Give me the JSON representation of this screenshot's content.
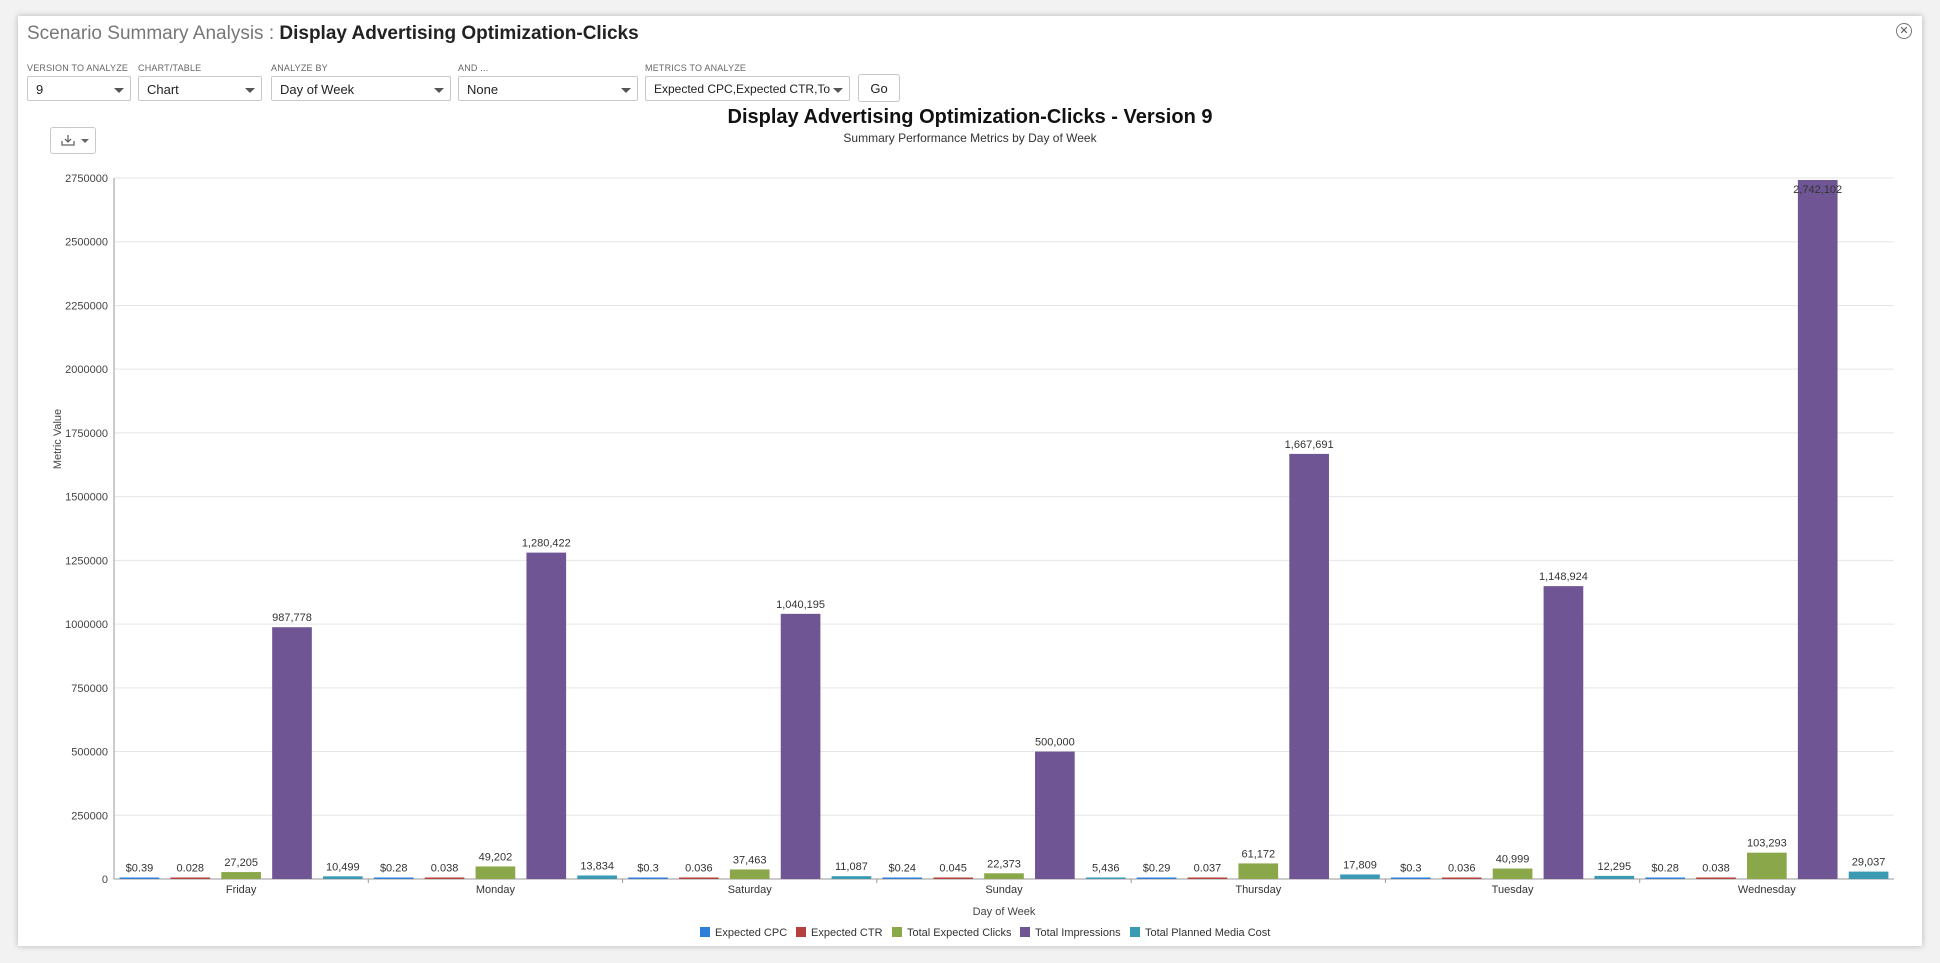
{
  "header": {
    "title_prefix": "Scenario Summary Analysis : ",
    "title_main": "Display Advertising Optimization-Clicks"
  },
  "controls": {
    "version": {
      "label": "VERSION TO ANALYZE",
      "value": "9"
    },
    "chart_table": {
      "label": "CHART/TABLE",
      "value": "Chart"
    },
    "analyze_by": {
      "label": "ANALYZE BY",
      "value": "Day of Week"
    },
    "and": {
      "label": "AND ...",
      "value": "None"
    },
    "metrics": {
      "label": "METRICS TO ANALYZE",
      "value": "Expected CPC,Expected CTR,To"
    },
    "go_label": "Go"
  },
  "icons": {
    "close": "close-icon",
    "download": "download-icon",
    "caret": "chevron-down-icon"
  },
  "chart_data": {
    "type": "bar",
    "title": "Display Advertising Optimization-Clicks - Version 9",
    "subtitle": "Summary Performance Metrics by Day of Week",
    "xlabel": "Day of Week",
    "ylabel": "Metric Value",
    "ylim": [
      0,
      2750000
    ],
    "yticks": [
      "0",
      "250000",
      "500000",
      "750000",
      "1000000",
      "1250000",
      "1500000",
      "1750000",
      "2000000",
      "2250000",
      "2500000",
      "2750000"
    ],
    "grid": true,
    "legend_position": "bottom",
    "categories": [
      "Friday",
      "Monday",
      "Saturday",
      "Sunday",
      "Thursday",
      "Tuesday",
      "Wednesday"
    ],
    "series": [
      {
        "name": "Expected CPC",
        "color": "#2f7ed8",
        "values": [
          0.39,
          0.28,
          0.3,
          0.24,
          0.29,
          0.3,
          0.28
        ],
        "labels": [
          "$0.39",
          "$0.28",
          "$0.3",
          "$0.24",
          "$0.29",
          "$0.3",
          "$0.28"
        ]
      },
      {
        "name": "Expected CTR",
        "color": "#b5413d",
        "values": [
          0.028,
          0.038,
          0.036,
          0.045,
          0.037,
          0.036,
          0.038
        ],
        "labels": [
          "0.028",
          "0.038",
          "0.036",
          "0.045",
          "0.037",
          "0.036",
          "0.038"
        ]
      },
      {
        "name": "Total Expected Clicks",
        "color": "#8aa74a",
        "values": [
          27205,
          49202,
          37463,
          22373,
          61172,
          40999,
          103293
        ],
        "labels": [
          "27,205",
          "49,202",
          "37,463",
          "22,373",
          "61,172",
          "40,999",
          "103,293"
        ]
      },
      {
        "name": "Total Impressions",
        "color": "#6f5594",
        "values": [
          987778,
          1280422,
          1040195,
          500000,
          1667691,
          1148924,
          2742102
        ],
        "labels": [
          "987,778",
          "1,280,422",
          "1,040,195",
          "500,000",
          "1,667,691",
          "1,148,924",
          "2,742,102"
        ]
      },
      {
        "name": "Total Planned Media Cost",
        "color": "#3a9ab3",
        "values": [
          10499,
          13834,
          11087,
          5436,
          17809,
          12295,
          29037
        ],
        "labels": [
          "10,499",
          "13,834",
          "11,087",
          "5,436",
          "17,809",
          "12,295",
          "29,037"
        ]
      }
    ]
  }
}
